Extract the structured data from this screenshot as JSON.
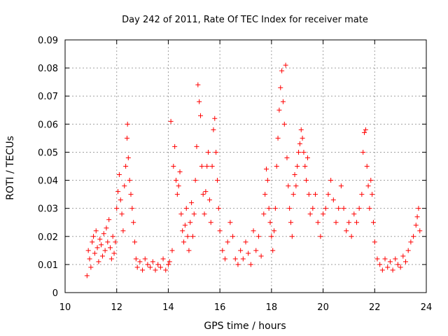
{
  "chart_data": {
    "type": "scatter",
    "title": "Day 242 of 2011, Rate Of TEC Index for receiver mate",
    "xlabel": "GPS time / hours",
    "ylabel": "ROTI / TECUs",
    "xlim": [
      10,
      24
    ],
    "ylim": [
      0,
      0.09
    ],
    "x_ticks": [
      "10",
      "12",
      "14",
      "16",
      "18",
      "20",
      "22",
      "24"
    ],
    "y_ticks": [
      "0",
      "0.01",
      "0.02",
      "0.03",
      "0.04",
      "0.05",
      "0.06",
      "0.07",
      "0.08",
      "0.09"
    ],
    "grid": true,
    "marker": "+",
    "series_color": "#ff0000",
    "series": [
      {
        "points": [
          [
            10.85,
            0.006
          ],
          [
            10.9,
            0.015
          ],
          [
            10.95,
            0.012
          ],
          [
            11.0,
            0.009
          ],
          [
            11.05,
            0.018
          ],
          [
            11.1,
            0.02
          ],
          [
            11.15,
            0.014
          ],
          [
            11.2,
            0.022
          ],
          [
            11.25,
            0.016
          ],
          [
            11.3,
            0.011
          ],
          [
            11.35,
            0.019
          ],
          [
            11.4,
            0.017
          ],
          [
            11.45,
            0.013
          ],
          [
            11.5,
            0.021
          ],
          [
            11.55,
            0.015
          ],
          [
            11.6,
            0.023
          ],
          [
            11.65,
            0.018
          ],
          [
            11.7,
            0.026
          ],
          [
            11.75,
            0.016
          ],
          [
            11.8,
            0.012
          ],
          [
            11.85,
            0.02
          ],
          [
            11.9,
            0.014
          ],
          [
            11.95,
            0.018
          ],
          [
            12.0,
            0.03
          ],
          [
            12.05,
            0.036
          ],
          [
            12.1,
            0.042
          ],
          [
            12.15,
            0.033
          ],
          [
            12.2,
            0.028
          ],
          [
            12.25,
            0.022
          ],
          [
            12.3,
            0.038
          ],
          [
            12.35,
            0.045
          ],
          [
            12.4,
            0.055
          ],
          [
            12.42,
            0.06
          ],
          [
            12.45,
            0.048
          ],
          [
            12.5,
            0.04
          ],
          [
            12.55,
            0.035
          ],
          [
            12.6,
            0.03
          ],
          [
            12.65,
            0.025
          ],
          [
            12.7,
            0.018
          ],
          [
            12.75,
            0.012
          ],
          [
            12.8,
            0.009
          ],
          [
            12.9,
            0.011
          ],
          [
            13.0,
            0.008
          ],
          [
            13.1,
            0.012
          ],
          [
            13.2,
            0.01
          ],
          [
            13.3,
            0.009
          ],
          [
            13.4,
            0.011
          ],
          [
            13.5,
            0.008
          ],
          [
            13.6,
            0.01
          ],
          [
            13.7,
            0.009
          ],
          [
            13.8,
            0.012
          ],
          [
            13.9,
            0.008
          ],
          [
            14.0,
            0.01
          ],
          [
            14.05,
            0.011
          ],
          [
            14.1,
            0.061
          ],
          [
            14.15,
            0.015
          ],
          [
            14.2,
            0.045
          ],
          [
            14.25,
            0.052
          ],
          [
            14.3,
            0.04
          ],
          [
            14.35,
            0.035
          ],
          [
            14.4,
            0.038
          ],
          [
            14.45,
            0.043
          ],
          [
            14.5,
            0.028
          ],
          [
            14.55,
            0.022
          ],
          [
            14.6,
            0.018
          ],
          [
            14.65,
            0.024
          ],
          [
            14.7,
            0.03
          ],
          [
            14.75,
            0.02
          ],
          [
            14.8,
            0.015
          ],
          [
            14.85,
            0.025
          ],
          [
            14.9,
            0.032
          ],
          [
            14.95,
            0.02
          ],
          [
            15.0,
            0.028
          ],
          [
            15.05,
            0.04
          ],
          [
            15.1,
            0.052
          ],
          [
            15.15,
            0.074
          ],
          [
            15.2,
            0.068
          ],
          [
            15.25,
            0.063
          ],
          [
            15.3,
            0.045
          ],
          [
            15.35,
            0.035
          ],
          [
            15.4,
            0.028
          ],
          [
            15.45,
            0.036
          ],
          [
            15.5,
            0.045
          ],
          [
            15.55,
            0.05
          ],
          [
            15.6,
            0.033
          ],
          [
            15.65,
            0.025
          ],
          [
            15.7,
            0.045
          ],
          [
            15.75,
            0.058
          ],
          [
            15.8,
            0.062
          ],
          [
            15.85,
            0.05
          ],
          [
            15.9,
            0.04
          ],
          [
            15.95,
            0.03
          ],
          [
            16.0,
            0.022
          ],
          [
            16.1,
            0.015
          ],
          [
            16.2,
            0.012
          ],
          [
            16.3,
            0.018
          ],
          [
            16.4,
            0.025
          ],
          [
            16.5,
            0.02
          ],
          [
            16.6,
            0.012
          ],
          [
            16.7,
            0.01
          ],
          [
            16.8,
            0.015
          ],
          [
            16.9,
            0.012
          ],
          [
            17.0,
            0.018
          ],
          [
            17.1,
            0.014
          ],
          [
            17.2,
            0.01
          ],
          [
            17.3,
            0.022
          ],
          [
            17.4,
            0.015
          ],
          [
            17.5,
            0.02
          ],
          [
            17.6,
            0.013
          ],
          [
            17.7,
            0.028
          ],
          [
            17.75,
            0.035
          ],
          [
            17.8,
            0.044
          ],
          [
            17.85,
            0.04
          ],
          [
            17.9,
            0.03
          ],
          [
            17.95,
            0.025
          ],
          [
            18.0,
            0.02
          ],
          [
            18.05,
            0.015
          ],
          [
            18.1,
            0.022
          ],
          [
            18.15,
            0.03
          ],
          [
            18.2,
            0.045
          ],
          [
            18.25,
            0.055
          ],
          [
            18.3,
            0.065
          ],
          [
            18.35,
            0.073
          ],
          [
            18.4,
            0.079
          ],
          [
            18.45,
            0.068
          ],
          [
            18.5,
            0.06
          ],
          [
            18.55,
            0.081
          ],
          [
            18.6,
            0.048
          ],
          [
            18.65,
            0.038
          ],
          [
            18.7,
            0.03
          ],
          [
            18.75,
            0.025
          ],
          [
            18.8,
            0.02
          ],
          [
            18.85,
            0.035
          ],
          [
            18.9,
            0.042
          ],
          [
            18.95,
            0.038
          ],
          [
            19.0,
            0.045
          ],
          [
            19.05,
            0.05
          ],
          [
            19.1,
            0.053
          ],
          [
            19.15,
            0.058
          ],
          [
            19.2,
            0.055
          ],
          [
            19.25,
            0.05
          ],
          [
            19.3,
            0.045
          ],
          [
            19.35,
            0.04
          ],
          [
            19.4,
            0.048
          ],
          [
            19.45,
            0.035
          ],
          [
            19.5,
            0.028
          ],
          [
            19.6,
            0.03
          ],
          [
            19.7,
            0.035
          ],
          [
            19.8,
            0.025
          ],
          [
            19.9,
            0.02
          ],
          [
            20.0,
            0.028
          ],
          [
            20.1,
            0.03
          ],
          [
            20.2,
            0.035
          ],
          [
            20.3,
            0.04
          ],
          [
            20.4,
            0.033
          ],
          [
            20.5,
            0.025
          ],
          [
            20.6,
            0.03
          ],
          [
            20.7,
            0.038
          ],
          [
            20.8,
            0.03
          ],
          [
            20.9,
            0.022
          ],
          [
            21.0,
            0.025
          ],
          [
            21.1,
            0.02
          ],
          [
            21.2,
            0.028
          ],
          [
            21.3,
            0.025
          ],
          [
            21.4,
            0.03
          ],
          [
            21.5,
            0.035
          ],
          [
            21.55,
            0.05
          ],
          [
            21.6,
            0.057
          ],
          [
            21.65,
            0.058
          ],
          [
            21.7,
            0.045
          ],
          [
            21.75,
            0.038
          ],
          [
            21.8,
            0.03
          ],
          [
            21.85,
            0.04
          ],
          [
            21.9,
            0.035
          ],
          [
            21.95,
            0.025
          ],
          [
            22.0,
            0.018
          ],
          [
            22.1,
            0.012
          ],
          [
            22.2,
            0.01
          ],
          [
            22.3,
            0.008
          ],
          [
            22.4,
            0.012
          ],
          [
            22.5,
            0.009
          ],
          [
            22.6,
            0.011
          ],
          [
            22.7,
            0.008
          ],
          [
            22.8,
            0.012
          ],
          [
            22.9,
            0.01
          ],
          [
            23.0,
            0.009
          ],
          [
            23.1,
            0.013
          ],
          [
            23.2,
            0.011
          ],
          [
            23.3,
            0.015
          ],
          [
            23.4,
            0.018
          ],
          [
            23.5,
            0.02
          ],
          [
            23.6,
            0.024
          ],
          [
            23.65,
            0.027
          ],
          [
            23.7,
            0.03
          ],
          [
            23.75,
            0.022
          ]
        ]
      }
    ]
  }
}
